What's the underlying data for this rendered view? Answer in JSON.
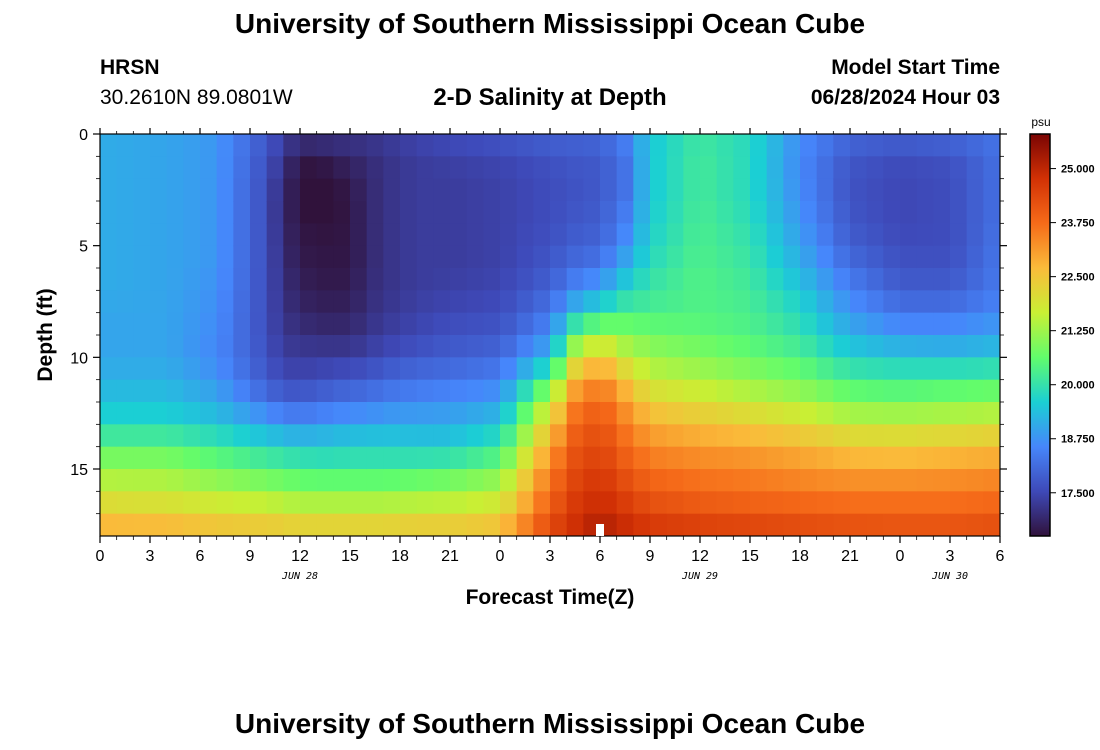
{
  "header": {
    "title": "University of Southern Mississippi Ocean Cube",
    "station_code": "HRSN",
    "station_coords": "30.2610N  89.0801W",
    "plot_title": "2-D Salinity at Depth",
    "model_start_label": "Model Start Time",
    "model_start_time": "06/28/2024 Hour 03"
  },
  "footer": {
    "title": "University of Southern Mississippi Ocean Cube"
  },
  "chart_data": {
    "type": "heatmap",
    "title": "2-D Salinity at Depth",
    "xlabel": "Forecast Time(Z)",
    "ylabel": "Depth (ft)",
    "x_hours_from_start": [
      0,
      54
    ],
    "x_tick_labels": [
      "0",
      "3",
      "6",
      "9",
      "12",
      "15",
      "18",
      "21",
      "0",
      "3",
      "6",
      "9",
      "12",
      "15",
      "18",
      "21",
      "0",
      "3",
      "6"
    ],
    "x_date_labels": [
      {
        "hour": 12,
        "label": "JUN 28"
      },
      {
        "hour": 36,
        "label": "JUN 29"
      },
      {
        "hour": 51,
        "label": "JUN 30"
      }
    ],
    "y_range_ft": [
      0,
      18
    ],
    "y_tick_values": [
      0,
      5,
      10,
      15
    ],
    "y_tick_labels": [
      "0",
      "5",
      "10",
      "15"
    ],
    "current_time_marker_hour": 30,
    "colorbar": {
      "unit": "psu",
      "range": [
        16.5,
        25.8
      ],
      "tick_values": [
        17.5,
        18.75,
        20.0,
        21.25,
        22.5,
        23.75,
        25.0
      ],
      "tick_labels": [
        "17.500",
        "18.750",
        "20.000",
        "21.250",
        "22.500",
        "23.750",
        "25.000"
      ],
      "colors": [
        "#30123b",
        "#3e49b8",
        "#4686fb",
        "#1bcfd4",
        "#61fc6c",
        "#c9ef34",
        "#fabb3a",
        "#f66b19",
        "#d23105",
        "#7a0403"
      ]
    },
    "depth_levels_ft": [
      0,
      1,
      2,
      3,
      4,
      5,
      6,
      7,
      8,
      9,
      10,
      11,
      12,
      13,
      14,
      15,
      16,
      17,
      18
    ],
    "key_hours": [
      0,
      4,
      7,
      10,
      11,
      12,
      13,
      14,
      15,
      16,
      17,
      19,
      21,
      24,
      27,
      28.5,
      30,
      31.5,
      33,
      36,
      39,
      42,
      45,
      48,
      51,
      54
    ],
    "salinity_profiles_psu": [
      [
        19.1,
        19.1,
        19.1,
        19.1,
        19.1,
        19.1,
        19.1,
        19.1,
        19.0,
        19.0,
        19.0,
        19.2,
        19.4,
        19.8,
        20.5,
        21.2,
        21.7,
        22.4,
        23.0
      ],
      [
        19.0,
        19.0,
        19.0,
        19.0,
        19.0,
        19.0,
        19.0,
        19.0,
        19.0,
        19.0,
        19.0,
        19.2,
        19.4,
        19.8,
        20.5,
        21.2,
        21.6,
        22.3,
        23.0
      ],
      [
        18.8,
        18.8,
        18.8,
        18.8,
        18.8,
        18.8,
        18.8,
        18.7,
        18.7,
        18.6,
        18.6,
        18.8,
        19.1,
        19.5,
        20.2,
        20.8,
        21.4,
        22.1,
        22.8
      ],
      [
        17.8,
        17.7,
        17.6,
        17.6,
        17.6,
        17.6,
        17.6,
        17.6,
        17.6,
        17.6,
        17.7,
        17.8,
        18.3,
        19.0,
        19.8,
        20.5,
        21.2,
        22.0,
        22.7
      ],
      [
        17.4,
        17.2,
        17.0,
        16.9,
        16.9,
        17.0,
        17.0,
        17.1,
        17.1,
        17.2,
        17.3,
        17.6,
        18.0,
        18.8,
        19.7,
        20.4,
        21.1,
        21.9,
        22.7
      ],
      [
        17.2,
        16.6,
        16.5,
        16.5,
        16.6,
        16.6,
        16.7,
        16.8,
        16.9,
        17.1,
        17.3,
        17.5,
        18.0,
        18.7,
        19.6,
        20.3,
        21.0,
        21.8,
        22.6
      ],
      [
        17.2,
        16.7,
        16.4,
        16.4,
        16.5,
        16.6,
        16.6,
        16.7,
        16.8,
        17.0,
        17.3,
        17.6,
        18.1,
        18.8,
        19.6,
        20.2,
        21.0,
        21.8,
        22.6
      ],
      [
        17.2,
        16.8,
        16.5,
        16.5,
        16.5,
        16.6,
        16.6,
        16.7,
        16.8,
        17.0,
        17.3,
        17.7,
        18.2,
        18.9,
        19.6,
        20.2,
        21.0,
        21.8,
        22.6
      ],
      [
        17.2,
        16.9,
        16.7,
        16.6,
        16.6,
        16.6,
        16.6,
        16.7,
        16.8,
        17.0,
        17.3,
        17.8,
        18.3,
        19.0,
        19.7,
        20.2,
        21.0,
        21.8,
        22.6
      ],
      [
        17.2,
        17.0,
        16.9,
        16.9,
        16.9,
        16.9,
        16.9,
        17.0,
        17.0,
        17.2,
        17.4,
        17.9,
        18.3,
        19.0,
        19.7,
        20.2,
        21.0,
        21.8,
        22.6
      ],
      [
        17.3,
        17.1,
        17.1,
        17.1,
        17.1,
        17.1,
        17.1,
        17.1,
        17.2,
        17.3,
        17.6,
        18.0,
        18.5,
        19.1,
        19.7,
        20.2,
        21.0,
        21.8,
        22.6
      ],
      [
        17.5,
        17.3,
        17.3,
        17.3,
        17.3,
        17.3,
        17.3,
        17.3,
        17.4,
        17.5,
        17.8,
        18.2,
        18.6,
        19.1,
        19.6,
        20.3,
        21.1,
        21.9,
        22.7
      ],
      [
        17.6,
        17.4,
        17.3,
        17.3,
        17.3,
        17.3,
        17.3,
        17.4,
        17.5,
        17.7,
        17.9,
        18.3,
        18.7,
        19.1,
        19.6,
        20.4,
        21.2,
        21.9,
        22.7
      ],
      [
        17.8,
        17.5,
        17.4,
        17.4,
        17.4,
        17.4,
        17.4,
        17.5,
        17.6,
        17.8,
        18.1,
        18.5,
        18.9,
        19.5,
        20.1,
        20.8,
        21.5,
        22.1,
        22.9
      ],
      [
        18.0,
        17.7,
        17.6,
        17.6,
        17.6,
        17.7,
        17.8,
        18.0,
        18.3,
        18.7,
        19.3,
        20.5,
        21.6,
        22.4,
        23.0,
        23.5,
        23.8,
        24.1,
        24.5
      ],
      [
        18.0,
        17.8,
        17.7,
        17.7,
        17.8,
        17.9,
        18.2,
        18.6,
        19.4,
        20.6,
        21.7,
        22.7,
        23.4,
        23.8,
        24.1,
        24.3,
        24.5,
        24.7,
        24.9
      ],
      [
        18.1,
        17.8,
        17.8,
        17.8,
        17.9,
        18.0,
        18.4,
        19.0,
        20.0,
        21.3,
        22.6,
        23.4,
        23.9,
        24.2,
        24.4,
        24.6,
        24.8,
        25.0,
        25.3
      ],
      [
        18.5,
        18.3,
        18.2,
        18.3,
        18.5,
        18.7,
        19.2,
        19.7,
        20.3,
        21.0,
        21.7,
        22.5,
        23.1,
        23.5,
        23.8,
        24.1,
        24.4,
        24.7,
        25.0
      ],
      [
        19.5,
        19.5,
        19.5,
        19.5,
        19.6,
        19.7,
        19.9,
        20.1,
        20.3,
        20.8,
        21.2,
        21.7,
        22.3,
        22.9,
        23.3,
        23.7,
        24.0,
        24.4,
        24.8
      ],
      [
        20.1,
        20.2,
        20.2,
        20.2,
        20.3,
        20.3,
        20.4,
        20.4,
        20.4,
        20.6,
        21.0,
        21.4,
        22.0,
        22.6,
        23.1,
        23.5,
        23.8,
        24.2,
        24.7
      ],
      [
        19.8,
        19.8,
        19.8,
        19.8,
        19.9,
        20.0,
        20.1,
        20.2,
        20.3,
        20.4,
        20.7,
        21.1,
        21.7,
        22.4,
        23.0,
        23.4,
        23.7,
        24.1,
        24.6
      ],
      [
        18.7,
        18.6,
        18.6,
        18.7,
        18.8,
        19.0,
        19.2,
        19.5,
        19.8,
        20.0,
        20.4,
        20.8,
        21.4,
        22.1,
        22.8,
        23.2,
        23.6,
        24.0,
        24.5
      ],
      [
        18.1,
        17.8,
        17.7,
        17.7,
        17.8,
        17.9,
        18.2,
        18.5,
        18.8,
        19.2,
        19.7,
        20.3,
        20.9,
        21.7,
        22.5,
        23.0,
        23.5,
        23.9,
        24.4
      ],
      [
        18.0,
        17.6,
        17.5,
        17.5,
        17.5,
        17.6,
        17.7,
        17.9,
        18.3,
        18.8,
        19.5,
        20.2,
        20.8,
        21.7,
        22.4,
        23.0,
        23.5,
        23.9,
        24.3
      ],
      [
        18.1,
        17.7,
        17.6,
        17.6,
        17.6,
        17.6,
        17.7,
        17.9,
        18.3,
        18.8,
        19.4,
        20.3,
        20.9,
        21.8,
        22.5,
        23.1,
        23.5,
        23.9,
        24.3
      ],
      [
        18.3,
        18.2,
        18.2,
        18.2,
        18.2,
        18.3,
        18.3,
        18.4,
        18.6,
        19.0,
        19.5,
        20.4,
        21.0,
        21.9,
        22.6,
        23.2,
        23.6,
        24.0,
        24.4
      ]
    ]
  }
}
